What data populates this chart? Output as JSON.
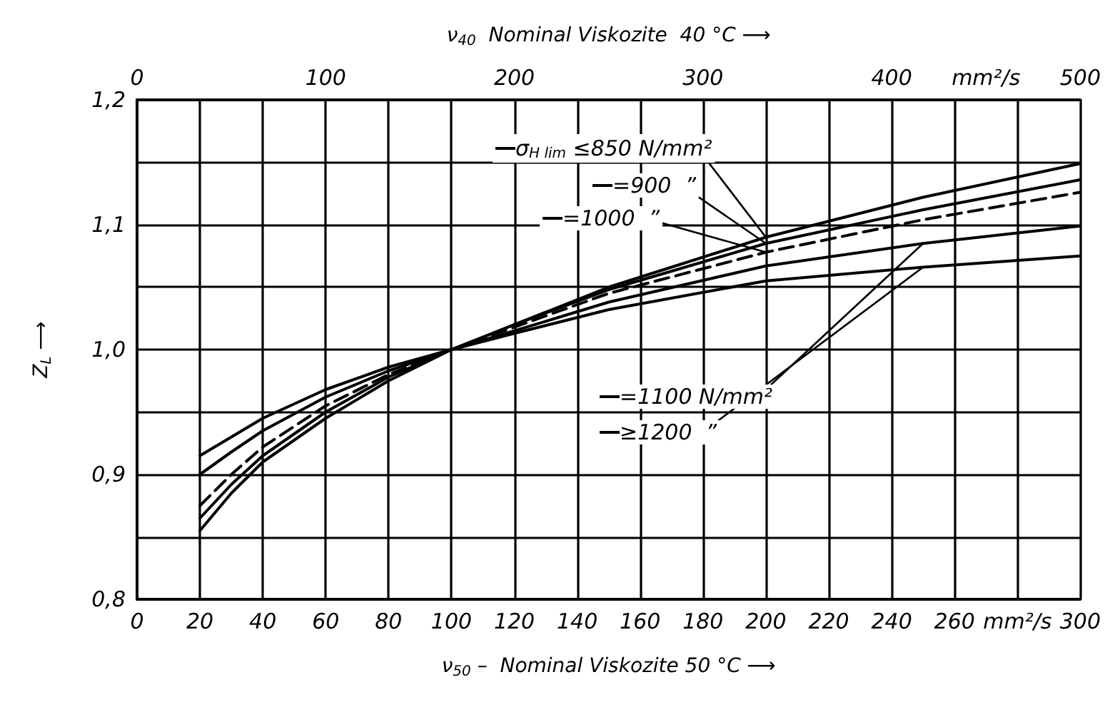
{
  "chart_data": {
    "type": "line",
    "xlabel": "ν$_{50}$ –  Nominal Viskozite 50 °C ⟶",
    "x2label": "ν$_{40}$  Nominal Viskozite  40 °C ⟶",
    "ylabel": "Z$_{L}$ ⟶",
    "x": [
      20,
      30,
      40,
      60,
      80,
      100,
      120,
      150,
      200,
      250,
      300
    ],
    "series": [
      {
        "name": "σ$_{H lim}$ ≤850 N/mm²",
        "color": "#000000",
        "values": [
          0.855,
          0.885,
          0.91,
          0.945,
          0.975,
          1.0,
          1.02,
          1.05,
          1.09,
          1.122,
          1.149
        ]
      },
      {
        "name": "=900  ”",
        "color": "#000000",
        "values": [
          0.865,
          0.892,
          0.915,
          0.95,
          0.978,
          1.0,
          1.02,
          1.048,
          1.085,
          1.112,
          1.136
        ]
      },
      {
        "name": "=1000  ”",
        "color": "#000000",
        "line_style": "dashed",
        "values": [
          0.875,
          0.9,
          0.922,
          0.955,
          0.98,
          1.0,
          1.018,
          1.045,
          1.078,
          1.104,
          1.126
        ]
      },
      {
        "name": "=1100 N/mm²",
        "color": "#000000",
        "values": [
          0.9,
          0.918,
          0.935,
          0.962,
          0.983,
          1.0,
          1.015,
          1.038,
          1.067,
          1.085,
          1.099
        ]
      },
      {
        "name": "≥1200  ”",
        "color": "#000000",
        "values": [
          0.915,
          0.93,
          0.945,
          0.968,
          0.986,
          1.0,
          1.013,
          1.032,
          1.055,
          1.066,
          1.075
        ]
      }
    ],
    "xlim": [
      0,
      300
    ],
    "xticks": [
      0,
      20,
      40,
      60,
      80,
      100,
      120,
      140,
      160,
      180,
      200,
      220,
      240,
      260,
      {
        "value": 280,
        "label": "mm²/s"
      },
      300
    ],
    "x2lim": [
      0,
      500
    ],
    "x2ticks": [
      0,
      100,
      200,
      300,
      400,
      {
        "value": 450,
        "label": "mm²/s"
      },
      500
    ],
    "ylim": [
      0.8,
      1.2
    ],
    "yticks": [
      {
        "value": 0.8,
        "label": "0,8"
      },
      {
        "value": 0.85,
        "label": null
      },
      {
        "value": 0.9,
        "label": "0,9"
      },
      {
        "value": 0.95,
        "label": null
      },
      {
        "value": 1.0,
        "label": "1,0"
      },
      {
        "value": 1.05,
        "label": null
      },
      {
        "value": 1.1,
        "label": "1,1"
      },
      {
        "value": 1.15,
        "label": null
      },
      {
        "value": 1.2,
        "label": "1,2"
      }
    ],
    "grid": true,
    "legend": "top",
    "marker": "none",
    "line_style": "solid"
  }
}
